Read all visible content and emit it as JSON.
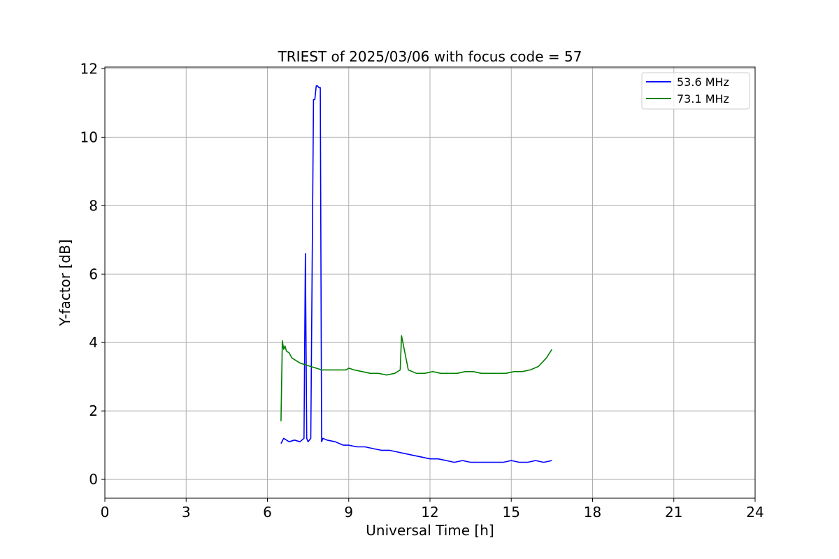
{
  "chart_data": {
    "type": "line",
    "title": "TRIEST of 2025/03/06 with focus code = 57",
    "xlabel": "Universal Time [h]",
    "ylabel": "Y-factor [dB]",
    "xlim": [
      0,
      24
    ],
    "ylim": [
      -0.55,
      12.05
    ],
    "xticks": [
      0,
      3,
      6,
      9,
      12,
      15,
      18,
      21,
      24
    ],
    "yticks": [
      0,
      2,
      4,
      6,
      8,
      10,
      12
    ],
    "grid": true,
    "legend_position": "top-right",
    "series": [
      {
        "name": "53.6 MHz",
        "color": "#0000ff",
        "x": [
          6.5,
          6.6,
          6.8,
          7.0,
          7.2,
          7.35,
          7.4,
          7.45,
          7.5,
          7.6,
          7.7,
          7.75,
          7.8,
          7.85,
          7.9,
          7.95,
          8.0,
          8.05,
          8.2,
          8.5,
          8.8,
          9.0,
          9.3,
          9.6,
          9.9,
          10.2,
          10.5,
          10.8,
          11.1,
          11.4,
          11.7,
          12.0,
          12.3,
          12.6,
          12.9,
          13.2,
          13.5,
          13.8,
          14.1,
          14.4,
          14.7,
          15.0,
          15.3,
          15.6,
          15.9,
          16.2,
          16.5
        ],
        "y": [
          1.05,
          1.2,
          1.1,
          1.15,
          1.1,
          1.2,
          6.6,
          1.2,
          1.1,
          1.2,
          11.1,
          11.1,
          11.5,
          11.5,
          11.45,
          11.45,
          1.1,
          1.2,
          1.15,
          1.1,
          1.0,
          1.0,
          0.95,
          0.95,
          0.9,
          0.85,
          0.85,
          0.8,
          0.75,
          0.7,
          0.65,
          0.6,
          0.6,
          0.55,
          0.5,
          0.55,
          0.5,
          0.5,
          0.5,
          0.5,
          0.5,
          0.55,
          0.5,
          0.5,
          0.55,
          0.5,
          0.55
        ]
      },
      {
        "name": "73.1 MHz",
        "color": "#008000",
        "x": [
          6.5,
          6.55,
          6.6,
          6.65,
          6.7,
          6.8,
          6.9,
          7.0,
          7.2,
          7.4,
          7.6,
          7.8,
          8.0,
          8.3,
          8.6,
          8.9,
          9.0,
          9.2,
          9.5,
          9.8,
          10.1,
          10.4,
          10.7,
          10.9,
          10.95,
          11.2,
          11.5,
          11.8,
          12.1,
          12.4,
          12.7,
          13.0,
          13.3,
          13.6,
          13.9,
          14.2,
          14.5,
          14.8,
          15.1,
          15.4,
          15.7,
          16.0,
          16.3,
          16.5
        ],
        "y": [
          1.7,
          4.05,
          3.8,
          3.9,
          3.75,
          3.7,
          3.55,
          3.5,
          3.4,
          3.35,
          3.3,
          3.25,
          3.2,
          3.2,
          3.2,
          3.2,
          3.25,
          3.2,
          3.15,
          3.1,
          3.1,
          3.05,
          3.1,
          3.2,
          4.2,
          3.2,
          3.1,
          3.1,
          3.15,
          3.1,
          3.1,
          3.1,
          3.15,
          3.15,
          3.1,
          3.1,
          3.1,
          3.1,
          3.15,
          3.15,
          3.2,
          3.3,
          3.55,
          3.8
        ]
      }
    ]
  }
}
